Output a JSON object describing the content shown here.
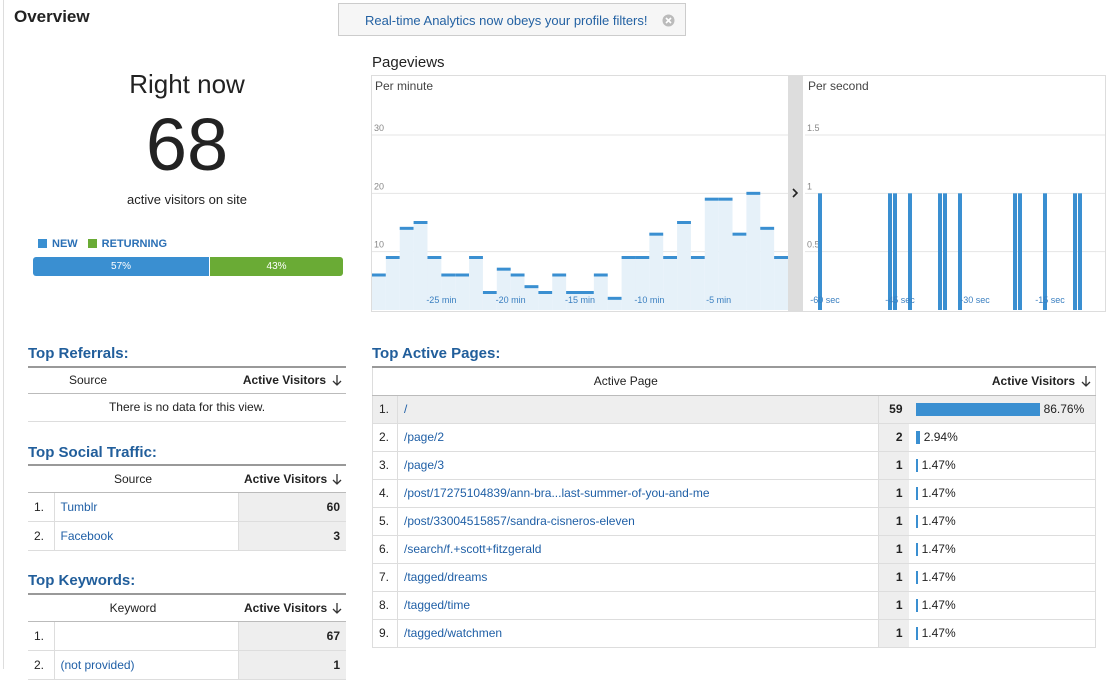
{
  "header": {
    "title": "Overview",
    "notice": "Real-time Analytics now obeys your profile filters!"
  },
  "right_now": {
    "title": "Right now",
    "count": 68,
    "caption": "active visitors on site",
    "segments": [
      {
        "name": "NEW",
        "color": "#3a8fd1",
        "value": 57,
        "label": "57%"
      },
      {
        "name": "RETURNING",
        "color": "#6aab35",
        "value": 43,
        "label": "43%"
      }
    ]
  },
  "pageviews_title": "Pageviews",
  "chart_data": [
    {
      "type": "bar",
      "title": "Per minute",
      "color": "#3a8fd1",
      "fill": "#e6f1f9",
      "x": [
        -30,
        -29,
        -28,
        -27,
        -26,
        -25,
        -24,
        -23,
        -22,
        -21,
        -20,
        -19,
        -18,
        -17,
        -16,
        -15,
        -14,
        -13,
        -12,
        -11,
        -10,
        -9,
        -8,
        -7,
        -6,
        -5,
        -4,
        -3,
        -2,
        -1
      ],
      "values": [
        6,
        9,
        14,
        15,
        9,
        6,
        6,
        9,
        3,
        7,
        6,
        4,
        3,
        6,
        3,
        3,
        6,
        2,
        9,
        9,
        13,
        9,
        15,
        9,
        19,
        19,
        13,
        20,
        14,
        9
      ],
      "xlim": [
        -30,
        0
      ],
      "ylim": [
        0,
        36
      ],
      "yticks": [
        10,
        20,
        30
      ],
      "xticks": [
        {
          "value": -25,
          "label": "-25 min"
        },
        {
          "value": -20,
          "label": "-20 min"
        },
        {
          "value": -15,
          "label": "-15 min"
        },
        {
          "value": -10,
          "label": "-10 min"
        },
        {
          "value": -5,
          "label": "-5 min"
        }
      ],
      "grid": true
    },
    {
      "type": "bar",
      "title": "Per second",
      "color": "#3a8fd1",
      "x": [
        -61,
        -47,
        -46,
        -43,
        -37,
        -36,
        -33,
        -22,
        -21,
        -16,
        -10,
        -9
      ],
      "values": [
        1,
        1,
        1,
        1,
        1,
        1,
        1,
        1,
        1,
        1,
        1,
        1
      ],
      "xlim": [
        -64,
        -4
      ],
      "ylim": [
        0,
        1.8
      ],
      "yticks": [
        0.5,
        1,
        1.5
      ],
      "xticks": [
        {
          "value": -60,
          "label": "-60 sec"
        },
        {
          "value": -45,
          "label": "-45 sec"
        },
        {
          "value": -30,
          "label": "-30 sec"
        },
        {
          "value": -15,
          "label": "-15 sec"
        }
      ],
      "grid": true
    }
  ],
  "top_referrals": {
    "title": "Top Referrals:",
    "columns": [
      "Source",
      "Active Visitors"
    ],
    "empty": "There is no data for this view."
  },
  "top_social": {
    "title": "Top Social Traffic:",
    "columns": [
      "Source",
      "Active Visitors"
    ],
    "rows": [
      {
        "rank": "1.",
        "name": "Tumblr",
        "visitors": 60
      },
      {
        "rank": "2.",
        "name": "Facebook",
        "visitors": 3
      }
    ]
  },
  "top_keywords": {
    "title": "Top Keywords:",
    "columns": [
      "Keyword",
      "Active Visitors"
    ],
    "rows": [
      {
        "rank": "1.",
        "name": null,
        "visitors": 67
      },
      {
        "rank": "2.",
        "name": "(not provided)",
        "visitors": 1
      }
    ]
  },
  "top_pages": {
    "title": "Top Active Pages:",
    "columns": [
      "Active Page",
      "Active Visitors"
    ],
    "rows": [
      {
        "rank": "1.",
        "page": "/",
        "visitors": 59,
        "percent": 86.76,
        "percent_label": "86.76%"
      },
      {
        "rank": "2.",
        "page": "/page/2",
        "visitors": 2,
        "percent": 2.94,
        "percent_label": "2.94%"
      },
      {
        "rank": "3.",
        "page": "/page/3",
        "visitors": 1,
        "percent": 1.47,
        "percent_label": "1.47%"
      },
      {
        "rank": "4.",
        "page": "/post/17275104839/ann-bra...last-summer-of-you-and-me",
        "visitors": 1,
        "percent": 1.47,
        "percent_label": "1.47%"
      },
      {
        "rank": "5.",
        "page": "/post/33004515857/sandra-cisneros-eleven",
        "visitors": 1,
        "percent": 1.47,
        "percent_label": "1.47%"
      },
      {
        "rank": "6.",
        "page": "/search/f.+scott+fitzgerald",
        "visitors": 1,
        "percent": 1.47,
        "percent_label": "1.47%"
      },
      {
        "rank": "7.",
        "page": "/tagged/dreams",
        "visitors": 1,
        "percent": 1.47,
        "percent_label": "1.47%"
      },
      {
        "rank": "8.",
        "page": "/tagged/time",
        "visitors": 1,
        "percent": 1.47,
        "percent_label": "1.47%"
      },
      {
        "rank": "9.",
        "page": "/tagged/watchmen",
        "visitors": 1,
        "percent": 1.47,
        "percent_label": "1.47%"
      }
    ]
  }
}
